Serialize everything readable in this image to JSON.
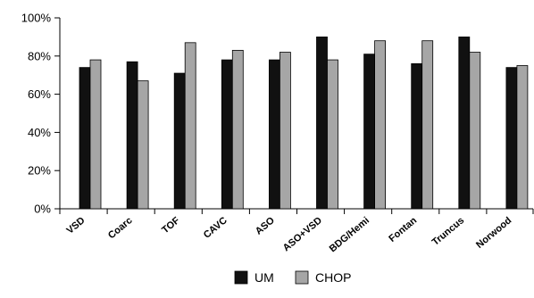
{
  "chart_data": {
    "type": "bar",
    "title": "",
    "xlabel": "",
    "ylabel": "",
    "categories": [
      "VSD",
      "Coarc",
      "TOF",
      "CAVC",
      "ASO",
      "ASO+VSD",
      "BDG/Hemi",
      "Fontan",
      "Truncus",
      "Norwood"
    ],
    "series": [
      {
        "name": "UM",
        "color": "#111111",
        "values": [
          74,
          77,
          71,
          78,
          78,
          90,
          81,
          76,
          90,
          74
        ]
      },
      {
        "name": "CHOP",
        "color": "#a6a6a6",
        "values": [
          78,
          67,
          87,
          83,
          82,
          78,
          88,
          88,
          82,
          75
        ]
      }
    ],
    "ylim": [
      0,
      100
    ],
    "yticks": [
      0,
      20,
      40,
      60,
      80,
      100
    ],
    "ytick_labels": [
      "0%",
      "20%",
      "40%",
      "60%",
      "80%",
      "100%"
    ],
    "grid": false,
    "legend_position": "bottom-center"
  }
}
